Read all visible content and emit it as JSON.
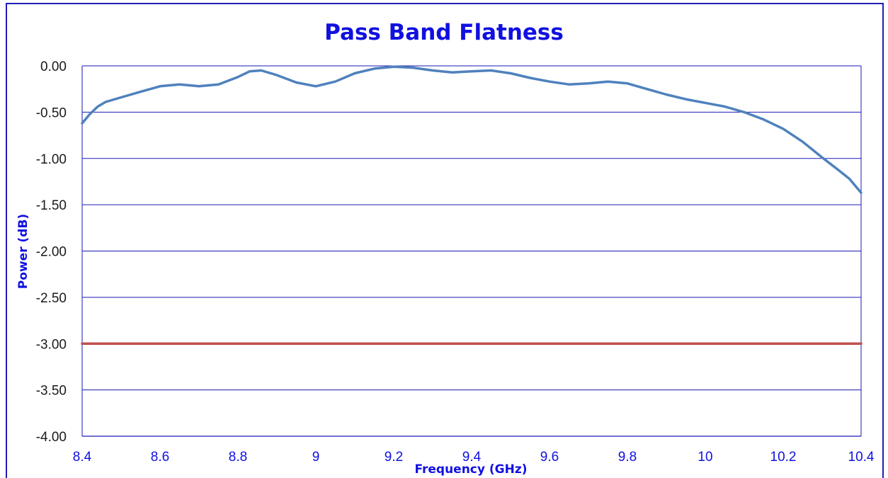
{
  "chart_data": {
    "type": "line",
    "title": "Pass Band Flatness",
    "xlabel": "Frequency (GHz)",
    "ylabel": "Power (dB)",
    "xlim": [
      8.4,
      10.4
    ],
    "ylim": [
      -4.0,
      0.0
    ],
    "x_ticks": [
      "8.4",
      "8.6",
      "8.8",
      "9",
      "9.2",
      "9.4",
      "9.6",
      "9.8",
      "10",
      "10.2",
      "10.4"
    ],
    "y_ticks": [
      "0.00",
      "-0.50",
      "-1.00",
      "-1.50",
      "-2.00",
      "-2.50",
      "-3.00",
      "-3.50",
      "-4.00"
    ],
    "grid": "horizontal",
    "colors": {
      "series": "#4f81bd",
      "reference": "#c0504d",
      "grid": "#1a1ab4",
      "text": "#1010e0"
    },
    "series": [
      {
        "color": "#4f81bd",
        "x": [
          8.4,
          8.42,
          8.44,
          8.46,
          8.5,
          8.55,
          8.6,
          8.65,
          8.7,
          8.75,
          8.8,
          8.83,
          8.86,
          8.9,
          8.95,
          9.0,
          9.05,
          9.1,
          9.15,
          9.2,
          9.25,
          9.3,
          9.35,
          9.4,
          9.45,
          9.5,
          9.55,
          9.6,
          9.65,
          9.7,
          9.75,
          9.8,
          9.85,
          9.9,
          9.95,
          10.0,
          10.05,
          10.1,
          10.15,
          10.2,
          10.25,
          10.3,
          10.34,
          10.37,
          10.4
        ],
        "y": [
          -0.62,
          -0.52,
          -0.44,
          -0.39,
          -0.34,
          -0.28,
          -0.22,
          -0.2,
          -0.22,
          -0.2,
          -0.12,
          -0.06,
          -0.05,
          -0.1,
          -0.18,
          -0.22,
          -0.17,
          -0.08,
          -0.03,
          -0.01,
          -0.02,
          -0.05,
          -0.07,
          -0.06,
          -0.05,
          -0.08,
          -0.13,
          -0.17,
          -0.2,
          -0.19,
          -0.17,
          -0.19,
          -0.25,
          -0.31,
          -0.36,
          -0.4,
          -0.44,
          -0.5,
          -0.58,
          -0.68,
          -0.82,
          -0.99,
          -1.12,
          -1.22,
          -1.37
        ]
      },
      {
        "color": "#c0504d",
        "x": [
          8.4,
          10.4
        ],
        "y": [
          -3.0,
          -3.0
        ]
      }
    ]
  }
}
